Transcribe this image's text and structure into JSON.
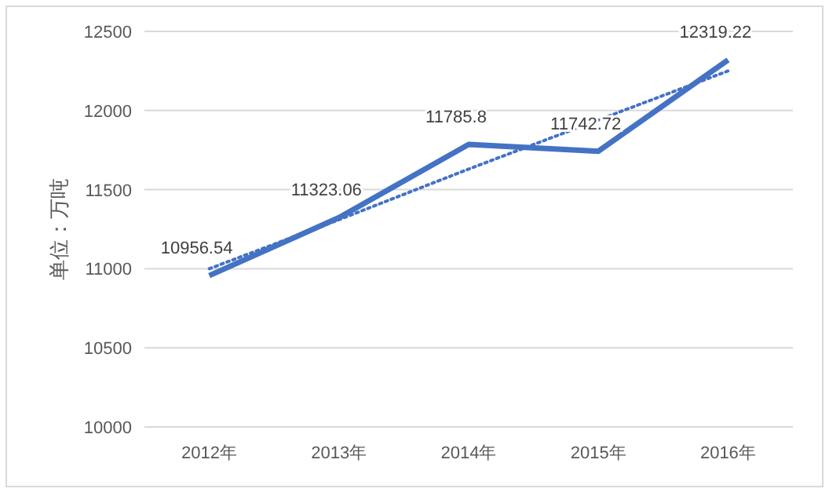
{
  "chart_data": {
    "type": "line",
    "ylabel": "单位：万吨",
    "categories": [
      "2012年",
      "2013年",
      "2014年",
      "2015年",
      "2016年"
    ],
    "series": [
      {
        "color": "#4472c4",
        "values": [
          10956.54,
          11323.06,
          11785.8,
          11742.72,
          12319.22
        ],
        "data_labels": true,
        "line_style": "solid"
      },
      {
        "type": "line",
        "color": "#4472c4",
        "values": [
          11000,
          11310,
          11630,
          11940,
          12250
        ],
        "line_style": "dotted"
      }
    ],
    "ylim": [
      10000,
      12500
    ],
    "yticks": [
      10000,
      10500,
      11000,
      11500,
      12000,
      12500
    ],
    "grid": "y",
    "marker": "none"
  }
}
